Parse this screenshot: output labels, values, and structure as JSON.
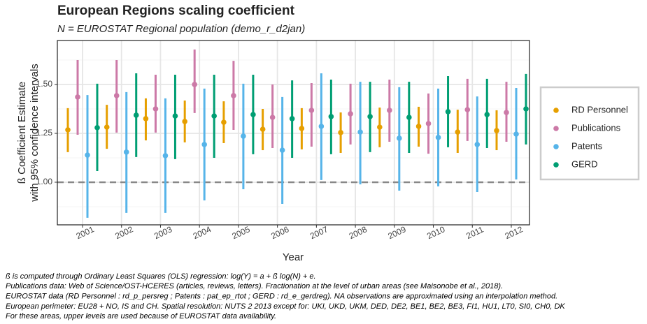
{
  "chart_data": {
    "type": "errorbar",
    "title": "European Regions scaling coefficient",
    "subtitle": "N = EUROSTAT Regional population (demo_r_d2jan)",
    "x_label": "Year",
    "y_label": [
      "ß Coefficient Estimate",
      "with 95% confidence intervals"
    ],
    "categories": [
      "2001",
      "2002",
      "2003",
      "2004",
      "2005",
      "2006",
      "2007",
      "2008",
      "2009",
      "2010",
      "2011",
      "2012"
    ],
    "ylim": [
      0.782,
      1.725
    ],
    "yticks": [
      {
        "value": 1,
        "label": "1.00"
      },
      {
        "value": 1.25,
        "label": "1.25"
      },
      {
        "value": 1.5,
        "label": "1.50"
      }
    ],
    "minor_grid": [
      0.875,
      1.125,
      1.375,
      1.625
    ],
    "reference_line": 1,
    "grid": true,
    "legend_position": "right",
    "series": [
      {
        "name": "RD Personnel",
        "color": "#E69F00",
        "values": [
          1.268,
          1.282,
          1.325,
          1.311,
          1.307,
          1.271,
          1.275,
          1.254,
          1.282,
          1.286,
          1.257,
          1.264
        ],
        "lower": [
          1.154,
          1.171,
          1.214,
          1.204,
          1.2,
          1.164,
          1.168,
          1.15,
          1.179,
          1.182,
          1.15,
          1.164
        ],
        "upper": [
          1.379,
          1.396,
          1.429,
          1.418,
          1.414,
          1.375,
          1.379,
          1.357,
          1.382,
          1.386,
          1.371,
          1.368
        ]
      },
      {
        "name": "Publications",
        "color": "#CC79A7",
        "values": [
          1.436,
          1.443,
          1.375,
          1.5,
          1.443,
          1.332,
          1.368,
          1.35,
          1.368,
          1.3,
          1.371,
          1.357
        ],
        "lower": [
          1.243,
          1.254,
          1.254,
          1.354,
          1.268,
          1.175,
          1.182,
          1.193,
          1.207,
          1.146,
          1.211,
          1.207
        ],
        "upper": [
          1.625,
          1.625,
          1.55,
          1.679,
          1.621,
          1.5,
          1.507,
          1.504,
          1.525,
          1.454,
          1.529,
          1.514
        ]
      },
      {
        "name": "Patents",
        "color": "#56B4E9",
        "values": [
          1.139,
          1.154,
          1.136,
          1.193,
          1.236,
          1.164,
          1.286,
          1.257,
          1.225,
          1.229,
          1.193,
          1.246
        ],
        "lower": [
          0.818,
          0.843,
          0.843,
          0.907,
          0.964,
          0.889,
          1.011,
          0.989,
          0.957,
          0.979,
          0.95,
          1.014
        ],
        "upper": [
          1.446,
          1.461,
          1.429,
          1.479,
          1.504,
          1.436,
          1.557,
          1.514,
          1.486,
          1.479,
          1.439,
          1.482
        ]
      },
      {
        "name": "GERD",
        "color": "#009E73",
        "values": [
          1.279,
          1.343,
          1.339,
          1.339,
          1.346,
          1.325,
          1.336,
          1.336,
          1.332,
          1.361,
          1.346,
          1.375
        ],
        "lower": [
          1.057,
          1.129,
          1.118,
          1.125,
          1.143,
          1.125,
          1.143,
          1.154,
          1.15,
          1.179,
          1.175,
          1.193
        ],
        "upper": [
          1.504,
          1.557,
          1.55,
          1.55,
          1.55,
          1.521,
          1.525,
          1.514,
          1.514,
          1.543,
          1.529,
          1.554
        ]
      }
    ],
    "footnotes": [
      "ß is computed through Ordinary Least Squares (OLS) regression: log(Y) = a + ß log(N) + e.",
      "Publications data: Web of Science/OST-HCERES (articles, reviews, letters). Fractionation at the level of urban areas (see Maisonobe et al., 2018).",
      "EUROSTAT data (RD Personnel : rd_p_persreg ; Patents : pat_ep_rtot ; GERD : rd_e_gerdreg). NA observations are approximated using an interpolation method.",
      "European perimeter: EU28 + NO, IS and CH. Spatial resolution: NUTS 2 2013 except for: UKI, UKD, UKM, DED, DE2, BE1, BE2, BE3, FI1, HU1, LT0, SI0, CH0, DK",
      "For these areas, upper levels are used because of EUROSTAT data availability."
    ]
  }
}
